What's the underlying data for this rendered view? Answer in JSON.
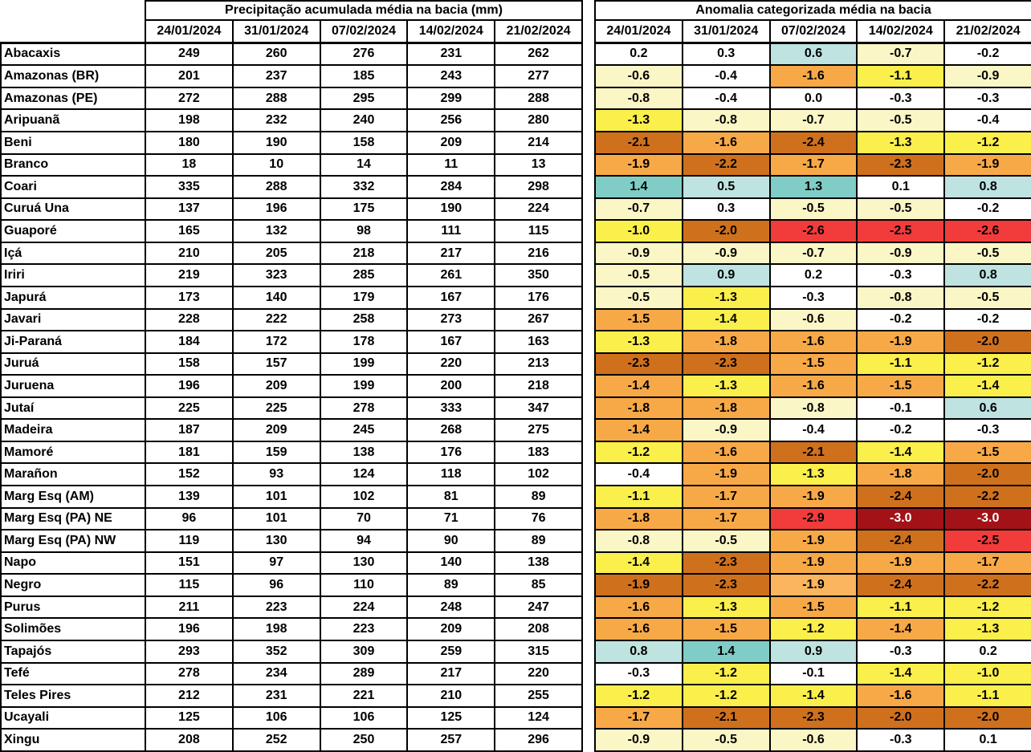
{
  "palette": {
    "white": "#FFFFFF",
    "cream": "#FBF6C6",
    "yellow": "#FAEF4B",
    "orange": "#F8A947",
    "lightorange": "#FBB55F",
    "darkorange": "#CF701D",
    "red": "#F23B3B",
    "darkred": "#A31217",
    "lightblue": "#BEE3E1",
    "teal": "#7FCDC6",
    "darkred_text": "#FFFFFF",
    "border": "#000000"
  },
  "chart_data": [
    {
      "type": "table",
      "title": "Precipitação acumulada média na bacia (mm)",
      "columns": [
        "24/01/2024",
        "31/01/2024",
        "07/02/2024",
        "14/02/2024",
        "21/02/2024"
      ],
      "row_labels": [
        "Abacaxis",
        "Amazonas (BR)",
        "Amazonas (PE)",
        "Aripuanã",
        "Beni",
        "Branco",
        "Coari",
        "Curuá Una",
        "Guaporé",
        "Içá",
        "Iriri",
        "Japurá",
        "Javari",
        "Ji-Paraná",
        "Juruá",
        "Juruena",
        "Jutaí",
        "Madeira",
        "Mamoré",
        "Marañon",
        "Marg Esq (AM)",
        "Marg Esq (PA) NE",
        "Marg Esq (PA) NW",
        "Napo",
        "Negro",
        "Purus",
        "Solimões",
        "Tapajós",
        "Tefé",
        "Teles Pires",
        "Ucayali",
        "Xingu"
      ],
      "values": [
        [
          249,
          260,
          276,
          231,
          262
        ],
        [
          201,
          237,
          185,
          243,
          277
        ],
        [
          272,
          288,
          295,
          299,
          288
        ],
        [
          198,
          232,
          240,
          256,
          280
        ],
        [
          180,
          190,
          158,
          209,
          214
        ],
        [
          18,
          10,
          14,
          11,
          13
        ],
        [
          335,
          288,
          332,
          284,
          298
        ],
        [
          137,
          196,
          175,
          190,
          224
        ],
        [
          165,
          132,
          98,
          111,
          115
        ],
        [
          210,
          205,
          218,
          217,
          216
        ],
        [
          219,
          323,
          285,
          261,
          350
        ],
        [
          173,
          140,
          179,
          167,
          176
        ],
        [
          228,
          222,
          258,
          273,
          267
        ],
        [
          184,
          172,
          178,
          167,
          163
        ],
        [
          158,
          157,
          199,
          220,
          213
        ],
        [
          196,
          209,
          199,
          200,
          218
        ],
        [
          225,
          225,
          278,
          333,
          347
        ],
        [
          187,
          209,
          245,
          268,
          275
        ],
        [
          181,
          159,
          138,
          176,
          183
        ],
        [
          152,
          93,
          124,
          118,
          102
        ],
        [
          139,
          101,
          102,
          81,
          89
        ],
        [
          96,
          101,
          70,
          71,
          76
        ],
        [
          119,
          130,
          94,
          90,
          89
        ],
        [
          151,
          97,
          130,
          140,
          138
        ],
        [
          115,
          96,
          110,
          89,
          85
        ],
        [
          211,
          223,
          224,
          248,
          247
        ],
        [
          196,
          198,
          223,
          209,
          208
        ],
        [
          293,
          352,
          309,
          259,
          315
        ],
        [
          278,
          234,
          289,
          217,
          220
        ],
        [
          212,
          231,
          221,
          210,
          255
        ],
        [
          125,
          106,
          106,
          125,
          124
        ],
        [
          208,
          252,
          250,
          257,
          296
        ]
      ]
    },
    {
      "type": "heatmap",
      "title": "Anomalia categorizada média na bacia",
      "columns": [
        "24/01/2024",
        "31/01/2024",
        "07/02/2024",
        "14/02/2024",
        "21/02/2024"
      ],
      "row_labels": [
        "Abacaxis",
        "Amazonas (BR)",
        "Amazonas (PE)",
        "Aripuanã",
        "Beni",
        "Branco",
        "Coari",
        "Curuá Una",
        "Guaporé",
        "Içá",
        "Iriri",
        "Japurá",
        "Javari",
        "Ji-Paraná",
        "Juruá",
        "Juruena",
        "Jutaí",
        "Madeira",
        "Mamoré",
        "Marañon",
        "Marg Esq (AM)",
        "Marg Esq (PA) NE",
        "Marg Esq (PA) NW",
        "Napo",
        "Negro",
        "Purus",
        "Solimões",
        "Tapajós",
        "Tefé",
        "Teles Pires",
        "Ucayali",
        "Xingu"
      ],
      "values": [
        [
          "0.2",
          "0.3",
          "0.6",
          "-0.7",
          "-0.2"
        ],
        [
          "-0.6",
          "-0.4",
          "-1.6",
          "-1.1",
          "-0.9"
        ],
        [
          "-0.8",
          "-0.4",
          "0.0",
          "-0.3",
          "-0.3"
        ],
        [
          "-1.3",
          "-0.8",
          "-0.7",
          "-0.5",
          "-0.4"
        ],
        [
          "-2.1",
          "-1.6",
          "-2.4",
          "-1.3",
          "-1.2"
        ],
        [
          "-1.9",
          "-2.2",
          "-1.7",
          "-2.3",
          "-1.9"
        ],
        [
          "1.4",
          "0.5",
          "1.3",
          "0.1",
          "0.8"
        ],
        [
          "-0.7",
          "0.3",
          "-0.5",
          "-0.5",
          "-0.2"
        ],
        [
          "-1.0",
          "-2.0",
          "-2.6",
          "-2.5",
          "-2.6"
        ],
        [
          "-0.9",
          "-0.9",
          "-0.7",
          "-0.9",
          "-0.5"
        ],
        [
          "-0.5",
          "0.9",
          "0.2",
          "-0.3",
          "0.8"
        ],
        [
          "-0.5",
          "-1.3",
          "-0.3",
          "-0.8",
          "-0.5"
        ],
        [
          "-1.5",
          "-1.4",
          "-0.6",
          "-0.2",
          "-0.2"
        ],
        [
          "-1.3",
          "-1.8",
          "-1.6",
          "-1.9",
          "-2.0"
        ],
        [
          "-2.3",
          "-2.3",
          "-1.5",
          "-1.1",
          "-1.2"
        ],
        [
          "-1.4",
          "-1.3",
          "-1.6",
          "-1.5",
          "-1.4"
        ],
        [
          "-1.8",
          "-1.8",
          "-0.8",
          "-0.1",
          "0.6"
        ],
        [
          "-1.4",
          "-0.9",
          "-0.4",
          "-0.2",
          "-0.3"
        ],
        [
          "-1.2",
          "-1.6",
          "-2.1",
          "-1.4",
          "-1.5"
        ],
        [
          "-0.4",
          "-1.9",
          "-1.3",
          "-1.8",
          "-2.0"
        ],
        [
          "-1.1",
          "-1.7",
          "-1.9",
          "-2.4",
          "-2.2"
        ],
        [
          "-1.8",
          "-1.7",
          "-2.9",
          "-3.0",
          "-3.0"
        ],
        [
          "-0.8",
          "-0.5",
          "-1.9",
          "-2.4",
          "-2.5"
        ],
        [
          "-1.4",
          "-2.3",
          "-1.9",
          "-1.9",
          "-1.7"
        ],
        [
          "-1.9",
          "-2.3",
          "-1.9",
          "-2.4",
          "-2.2"
        ],
        [
          "-1.6",
          "-1.3",
          "-1.5",
          "-1.1",
          "-1.2"
        ],
        [
          "-1.6",
          "-1.5",
          "-1.2",
          "-1.4",
          "-1.3"
        ],
        [
          "0.8",
          "1.4",
          "0.9",
          "-0.3",
          "0.2"
        ],
        [
          "-0.3",
          "-1.2",
          "-0.1",
          "-1.4",
          "-1.0"
        ],
        [
          "-1.2",
          "-1.2",
          "-1.4",
          "-1.6",
          "-1.1"
        ],
        [
          "-1.7",
          "-2.1",
          "-2.3",
          "-2.0",
          "-2.0"
        ],
        [
          "-0.9",
          "-0.5",
          "-0.6",
          "-0.3",
          "0.1"
        ]
      ],
      "cell_colors": [
        [
          "white",
          "white",
          "lightblue",
          "cream",
          "white"
        ],
        [
          "cream",
          "white",
          "orange",
          "yellow",
          "cream"
        ],
        [
          "cream",
          "white",
          "white",
          "white",
          "white"
        ],
        [
          "yellow",
          "cream",
          "cream",
          "cream",
          "white"
        ],
        [
          "darkorange",
          "orange",
          "darkorange",
          "yellow",
          "yellow"
        ],
        [
          "orange",
          "darkorange",
          "orange",
          "darkorange",
          "orange"
        ],
        [
          "teal",
          "lightblue",
          "teal",
          "white",
          "lightblue"
        ],
        [
          "cream",
          "white",
          "cream",
          "cream",
          "white"
        ],
        [
          "yellow",
          "darkorange",
          "red",
          "red",
          "red"
        ],
        [
          "cream",
          "cream",
          "cream",
          "cream",
          "cream"
        ],
        [
          "cream",
          "lightblue",
          "white",
          "white",
          "lightblue"
        ],
        [
          "cream",
          "yellow",
          "white",
          "cream",
          "cream"
        ],
        [
          "orange",
          "yellow",
          "cream",
          "white",
          "white"
        ],
        [
          "yellow",
          "orange",
          "orange",
          "orange",
          "darkorange"
        ],
        [
          "darkorange",
          "darkorange",
          "orange",
          "yellow",
          "yellow"
        ],
        [
          "orange",
          "yellow",
          "orange",
          "orange",
          "yellow"
        ],
        [
          "orange",
          "orange",
          "cream",
          "white",
          "lightblue"
        ],
        [
          "orange",
          "cream",
          "white",
          "white",
          "white"
        ],
        [
          "yellow",
          "orange",
          "darkorange",
          "yellow",
          "orange"
        ],
        [
          "white",
          "orange",
          "yellow",
          "orange",
          "darkorange"
        ],
        [
          "yellow",
          "orange",
          "orange",
          "darkorange",
          "darkorange"
        ],
        [
          "orange",
          "orange",
          "red",
          "darkred",
          "darkred"
        ],
        [
          "cream",
          "cream",
          "orange",
          "darkorange",
          "red"
        ],
        [
          "yellow",
          "darkorange",
          "orange",
          "orange",
          "orange"
        ],
        [
          "darkorange",
          "darkorange",
          "lightorange",
          "darkorange",
          "darkorange"
        ],
        [
          "orange",
          "yellow",
          "orange",
          "yellow",
          "yellow"
        ],
        [
          "orange",
          "orange",
          "yellow",
          "orange",
          "yellow"
        ],
        [
          "lightblue",
          "teal",
          "lightblue",
          "white",
          "white"
        ],
        [
          "white",
          "yellow",
          "white",
          "yellow",
          "yellow"
        ],
        [
          "yellow",
          "yellow",
          "yellow",
          "orange",
          "yellow"
        ],
        [
          "orange",
          "darkorange",
          "darkorange",
          "darkorange",
          "darkorange"
        ],
        [
          "cream",
          "cream",
          "cream",
          "white",
          "white"
        ]
      ]
    }
  ]
}
